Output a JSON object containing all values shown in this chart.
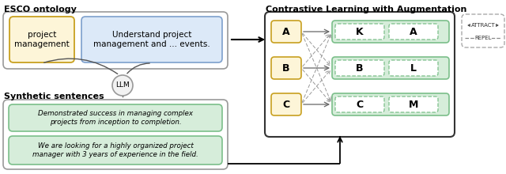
{
  "title_esco": "ESCO ontology",
  "title_contrastive": "Contrastive Learning with Augmentation",
  "title_synthetic": "Synthetic sentences",
  "skill_text": "project\nmanagement",
  "desc_text": "Understand project\nmanagement and ... events.",
  "llm_text": "LLM",
  "sent1": "Demonstrated success in managing complex\nprojects from inception to completion.",
  "sent2": "We are looking for a highly organized project\nmanager with 3 years of experience in the field.",
  "labels_left": [
    "A",
    "B",
    "C"
  ],
  "labels_right": [
    [
      "K",
      "A"
    ],
    [
      "B",
      "L"
    ],
    [
      "C",
      "M"
    ]
  ],
  "color_yellow_bg": "#FDF5D8",
  "color_yellow_border": "#C8A020",
  "color_blue_bg": "#DCE9F8",
  "color_blue_border": "#7DA0CC",
  "color_green_bg": "#D6EDDA",
  "color_green_border": "#7BBF8A",
  "color_dark": "#333333",
  "color_gray": "#888888",
  "color_light_gray": "#aaaaaa",
  "bg_color": "#ffffff"
}
